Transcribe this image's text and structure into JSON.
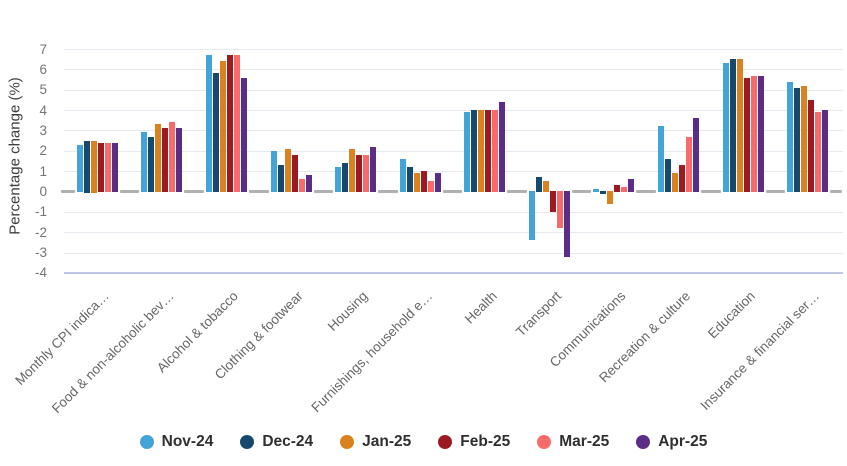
{
  "chart_data": {
    "type": "bar",
    "title": "",
    "xlabel": "",
    "ylabel": "Percentage change (%)",
    "ylim": [
      -4,
      7
    ],
    "y_ticks": [
      7,
      6,
      5,
      4,
      3,
      2,
      1,
      0,
      -1,
      -2,
      -3,
      -4
    ],
    "grid": true,
    "legend_position": "bottom",
    "categories": [
      "Monthly CPI indica…",
      "Food & non-alcoholic bev…",
      "Alcohol & tobacco",
      "Clothing & footwear",
      "Housing",
      "Furnishings, household e…",
      "Health",
      "Transport",
      "Communications",
      "Recreation & culture",
      "Education",
      "Insurance & financial ser…"
    ],
    "series": [
      {
        "name": "Nov-24",
        "color": "#44A4D7",
        "values": [
          2.3,
          2.9,
          6.7,
          2.0,
          1.2,
          1.6,
          3.9,
          -2.4,
          0.1,
          3.2,
          6.3,
          5.4
        ]
      },
      {
        "name": "Dec-24",
        "color": "#17496E",
        "values": [
          2.5,
          2.7,
          5.8,
          1.3,
          1.4,
          1.2,
          4.0,
          0.7,
          -0.1,
          1.6,
          6.5,
          5.1
        ]
      },
      {
        "name": "Jan-25",
        "color": "#D9821F",
        "values": [
          2.5,
          3.3,
          6.4,
          2.1,
          2.1,
          0.9,
          4.0,
          0.5,
          -0.6,
          0.9,
          6.5,
          5.2
        ]
      },
      {
        "name": "Feb-25",
        "color": "#9C1B22",
        "values": [
          2.4,
          3.1,
          6.7,
          1.8,
          1.8,
          1.0,
          4.0,
          -1.0,
          0.3,
          1.3,
          5.6,
          4.5
        ]
      },
      {
        "name": "Mar-25",
        "color": "#F96A6B",
        "values": [
          2.4,
          3.4,
          6.7,
          0.6,
          1.8,
          0.5,
          4.0,
          -1.8,
          0.2,
          2.7,
          5.7,
          3.9
        ]
      },
      {
        "name": "Apr-25",
        "color": "#5B2D87",
        "values": [
          2.4,
          3.1,
          5.6,
          0.8,
          2.2,
          0.9,
          4.4,
          -3.2,
          0.6,
          3.6,
          5.7,
          4.0
        ]
      }
    ]
  },
  "colors": {
    "gridline": "#e7e9f0",
    "axis_line": "#bfc7e4",
    "zero_line": "#b0b0b0",
    "tick_text": "#757575",
    "category_text": "#666666",
    "legend_text": "#2f2f2f"
  }
}
